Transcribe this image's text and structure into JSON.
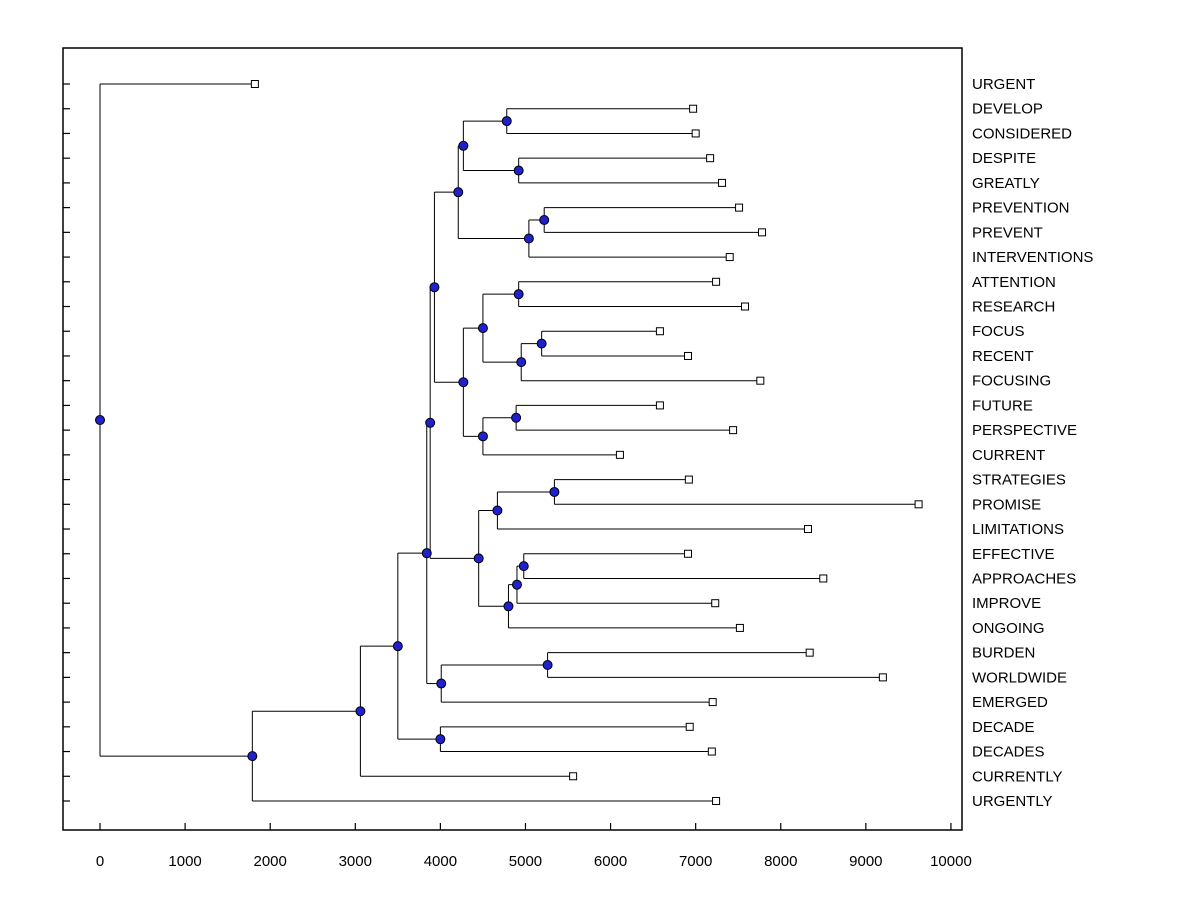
{
  "figure": {
    "background": "#FFFFFF"
  },
  "chart_data": {
    "type": "dendrogram",
    "orientation": "left-to-right",
    "title": "",
    "xlabel": "",
    "ylabel": "",
    "grid": false,
    "legend": null,
    "xlim": [
      -435,
      10130
    ],
    "x_ticks": [
      0,
      1000,
      2000,
      3000,
      4000,
      5000,
      6000,
      7000,
      8000,
      9000,
      10000
    ],
    "x_tick_labels": [
      "0",
      "1000",
      "2000",
      "3000",
      "4000",
      "5000",
      "6000",
      "7000",
      "8000",
      "9000",
      "10000"
    ],
    "colors": {
      "branch_line": "#000000",
      "axis_line": "#000000",
      "internal_node_fill": "#2020CC",
      "internal_node_edge": "#000000",
      "leaf_marker_fill": "#FFFFFF",
      "leaf_marker_edge": "#000000",
      "text": "#000000"
    },
    "leaf_labels": [
      "URGENT",
      "DEVELOP",
      "CONSIDERED",
      "DESPITE",
      "GREATLY",
      "PREVENTION",
      "PREVENT",
      "INTERVENTIONS",
      "ATTENTION",
      "RESEARCH",
      "FOCUS",
      "RECENT",
      "FOCUSING",
      "FUTURE",
      "PERSPECTIVE",
      "CURRENT",
      "STRATEGIES",
      "PROMISE",
      "LIMITATIONS",
      "EFFECTIVE",
      "APPROACHES",
      "IMPROVE",
      "ONGOING",
      "BURDEN",
      "WORLDWIDE",
      "EMERGED",
      "DECADE",
      "DECADES",
      "CURRENTLY",
      "URGENTLY"
    ],
    "leaf_distances": [
      1820,
      6970,
      7000,
      7170,
      7310,
      7510,
      7780,
      7400,
      7240,
      7580,
      6580,
      6910,
      7760,
      6580,
      7440,
      6110,
      6920,
      9620,
      8320,
      6910,
      8500,
      7230,
      7520,
      8340,
      9200,
      7200,
      6930,
      7190,
      5560,
      7240
    ],
    "tree": {
      "x": 0,
      "children": [
        {
          "leaf": "URGENT",
          "x": 1820
        },
        {
          "x": 1790,
          "children": [
            {
              "x": 3060,
              "children": [
                {
                  "x": 3500,
                  "children": [
                    {
                      "x": 3840,
                      "children": [
                        {
                          "x": 3880,
                          "children": [
                            {
                              "x": 3930,
                              "children": [
                                {
                                  "x": 4210,
                                  "children": [
                                    {
                                      "x": 4270,
                                      "children": [
                                        {
                                          "x": 4780,
                                          "children": [
                                            {
                                              "leaf": "DEVELOP",
                                              "x": 6970
                                            },
                                            {
                                              "leaf": "CONSIDERED",
                                              "x": 7000
                                            }
                                          ]
                                        },
                                        {
                                          "x": 4920,
                                          "children": [
                                            {
                                              "leaf": "DESPITE",
                                              "x": 7170
                                            },
                                            {
                                              "leaf": "GREATLY",
                                              "x": 7310
                                            }
                                          ]
                                        }
                                      ]
                                    },
                                    {
                                      "x": 5040,
                                      "children": [
                                        {
                                          "x": 5220,
                                          "children": [
                                            {
                                              "leaf": "PREVENTION",
                                              "x": 7510
                                            },
                                            {
                                              "leaf": "PREVENT",
                                              "x": 7780
                                            }
                                          ]
                                        },
                                        {
                                          "leaf": "INTERVENTIONS",
                                          "x": 7400
                                        }
                                      ]
                                    }
                                  ]
                                },
                                {
                                  "x": 4270,
                                  "children": [
                                    {
                                      "x": 4500,
                                      "children": [
                                        {
                                          "x": 4920,
                                          "children": [
                                            {
                                              "leaf": "ATTENTION",
                                              "x": 7240
                                            },
                                            {
                                              "leaf": "RESEARCH",
                                              "x": 7580
                                            }
                                          ]
                                        },
                                        {
                                          "x": 4950,
                                          "children": [
                                            {
                                              "x": 5190,
                                              "children": [
                                                {
                                                  "leaf": "FOCUS",
                                                  "x": 6580
                                                },
                                                {
                                                  "leaf": "RECENT",
                                                  "x": 6910
                                                }
                                              ]
                                            },
                                            {
                                              "leaf": "FOCUSING",
                                              "x": 7760
                                            }
                                          ]
                                        }
                                      ]
                                    },
                                    {
                                      "x": 4500,
                                      "children": [
                                        {
                                          "x": 4890,
                                          "children": [
                                            {
                                              "leaf": "FUTURE",
                                              "x": 6580
                                            },
                                            {
                                              "leaf": "PERSPECTIVE",
                                              "x": 7440
                                            }
                                          ]
                                        },
                                        {
                                          "leaf": "CURRENT",
                                          "x": 6110
                                        }
                                      ]
                                    }
                                  ]
                                }
                              ]
                            },
                            {
                              "x": 4450,
                              "children": [
                                {
                                  "x": 4670,
                                  "children": [
                                    {
                                      "x": 5340,
                                      "children": [
                                        {
                                          "leaf": "STRATEGIES",
                                          "x": 6920
                                        },
                                        {
                                          "leaf": "PROMISE",
                                          "x": 9620
                                        }
                                      ]
                                    },
                                    {
                                      "leaf": "LIMITATIONS",
                                      "x": 8320
                                    }
                                  ]
                                },
                                {
                                  "x": 4800,
                                  "children": [
                                    {
                                      "x": 4900,
                                      "children": [
                                        {
                                          "x": 4980,
                                          "children": [
                                            {
                                              "leaf": "EFFECTIVE",
                                              "x": 6910
                                            },
                                            {
                                              "leaf": "APPROACHES",
                                              "x": 8500
                                            }
                                          ]
                                        },
                                        {
                                          "leaf": "IMPROVE",
                                          "x": 7230
                                        }
                                      ]
                                    },
                                    {
                                      "leaf": "ONGOING",
                                      "x": 7520
                                    }
                                  ]
                                }
                              ]
                            }
                          ]
                        },
                        {
                          "x": 4010,
                          "children": [
                            {
                              "x": 5260,
                              "children": [
                                {
                                  "leaf": "BURDEN",
                                  "x": 8340
                                },
                                {
                                  "leaf": "WORLDWIDE",
                                  "x": 9200
                                }
                              ]
                            },
                            {
                              "leaf": "EMERGED",
                              "x": 7200
                            }
                          ]
                        }
                      ]
                    },
                    {
                      "x": 4000,
                      "children": [
                        {
                          "leaf": "DECADE",
                          "x": 6930
                        },
                        {
                          "leaf": "DECADES",
                          "x": 7190
                        }
                      ]
                    }
                  ]
                },
                {
                  "leaf": "CURRENTLY",
                  "x": 5560
                }
              ]
            },
            {
              "leaf": "URGENTLY",
              "x": 7240
            }
          ]
        }
      ]
    }
  }
}
